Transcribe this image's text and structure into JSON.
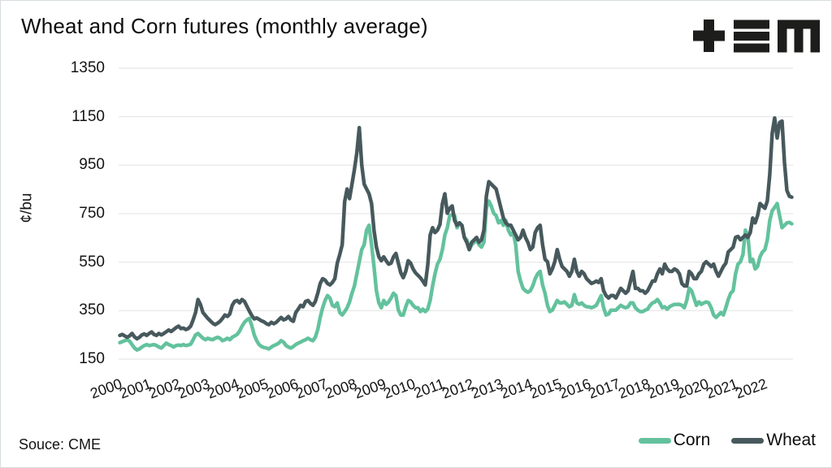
{
  "header": {
    "title": "Wheat and Corn futures (monthly average)"
  },
  "logo": {
    "glyphs": [
      "plus",
      "triple-bar",
      "letter-m"
    ],
    "color": "#1d1d1b"
  },
  "source": {
    "label": "Souce: CME"
  },
  "chart_data": {
    "type": "line",
    "title": "Wheat and Corn futures (monthly average)",
    "xlabel": "",
    "ylabel": "¢/bu",
    "ylim": [
      150,
      1350
    ],
    "yticks": [
      150,
      350,
      550,
      750,
      950,
      1150,
      1350
    ],
    "xticks": [
      2000,
      2001,
      2002,
      2003,
      2004,
      2005,
      2006,
      2007,
      2008,
      2009,
      2010,
      2011,
      2012,
      2013,
      2014,
      2015,
      2016,
      2017,
      2018,
      2019,
      2020,
      2021,
      2022
    ],
    "x_frequency": "monthly",
    "grid": "horizontal",
    "legend_position": "bottom-right",
    "series": [
      {
        "name": "Corn",
        "color": "#63c29d",
        "values": [
          218,
          222,
          226,
          230,
          224,
          210,
          196,
          188,
          192,
          200,
          206,
          210,
          206,
          208,
          210,
          206,
          200,
          196,
          206,
          216,
          210,
          206,
          200,
          206,
          208,
          206,
          210,
          206,
          208,
          212,
          230,
          250,
          256,
          246,
          236,
          230,
          236,
          232,
          230,
          236,
          240,
          236,
          226,
          230,
          236,
          230,
          240,
          246,
          252,
          266,
          286,
          302,
          312,
          318,
          288,
          250,
          226,
          210,
          202,
          198,
          196,
          192,
          200,
          206,
          210,
          216,
          226,
          220,
          206,
          200,
          196,
          202,
          210,
          216,
          220,
          226,
          230,
          236,
          230,
          226,
          240,
          272,
          322,
          362,
          392,
          412,
          402,
          372,
          366,
          382,
          342,
          332,
          346,
          362,
          386,
          422,
          452,
          502,
          552,
          602,
          622,
          682,
          702,
          622,
          532,
          432,
          382,
          362,
          392,
          376,
          386,
          402,
          422,
          412,
          352,
          332,
          332,
          366,
          392,
          386,
          372,
          362,
          362,
          346,
          356,
          346,
          356,
          392,
          452,
          502,
          542,
          562,
          602,
          662,
          692,
          742,
          746,
          742,
          692,
          712,
          702,
          652,
          642,
          602,
          622,
          632,
          642,
          622,
          612,
          632,
          772,
          802,
          782,
          752,
          742,
          712,
          722,
          702,
          722,
          682,
          662,
          672,
          622,
          512,
          472,
          442,
          432,
          426,
          432,
          452,
          482,
          502,
          512,
          456,
          422,
          372,
          346,
          352,
          372,
          392,
          382,
          382,
          386,
          376,
          366,
          372,
          416,
          382,
          376,
          382,
          372,
          366,
          366,
          362,
          366,
          372,
          392,
          412,
          362,
          332,
          336,
          352,
          352,
          352,
          362,
          372,
          366,
          362,
          366,
          382,
          382,
          362,
          352,
          346,
          346,
          352,
          356,
          372,
          382,
          386,
          396,
          382,
          362,
          366,
          356,
          366,
          372,
          376,
          376,
          376,
          372,
          362,
          392,
          442,
          432,
          402,
          372,
          386,
          376,
          382,
          386,
          382,
          362,
          332,
          322,
          332,
          342,
          332,
          362,
          396,
          422,
          432,
          502,
          542,
          552,
          582,
          682,
          662,
          552,
          562,
          522,
          532,
          572,
          592,
          602,
          642,
          722,
          762,
          776,
          792,
          742,
          692,
          702,
          712,
          714,
          708
        ]
      },
      {
        "name": "Wheat",
        "color": "#47595d",
        "values": [
          248,
          252,
          246,
          240,
          246,
          256,
          242,
          234,
          240,
          250,
          254,
          248,
          256,
          262,
          252,
          248,
          256,
          250,
          256,
          263,
          270,
          264,
          272,
          280,
          286,
          276,
          278,
          272,
          276,
          286,
          312,
          342,
          396,
          376,
          342,
          330,
          318,
          308,
          298,
          292,
          298,
          306,
          318,
          332,
          326,
          336,
          372,
          388,
          392,
          382,
          396,
          388,
          368,
          348,
          330,
          316,
          320,
          314,
          308,
          304,
          296,
          292,
          302,
          296,
          302,
          312,
          322,
          312,
          316,
          326,
          312,
          306,
          342,
          356,
          372,
          366,
          388,
          392,
          380,
          372,
          388,
          422,
          462,
          482,
          476,
          462,
          456,
          466,
          482,
          546,
          582,
          622,
          800,
          852,
          812,
          872,
          932,
          1002,
          1105,
          952,
          872,
          852,
          832,
          792,
          682,
          612,
          572,
          556,
          572,
          556,
          542,
          546,
          572,
          586,
          546,
          506,
          486,
          512,
          556,
          546,
          522,
          506,
          496,
          486,
          472,
          456,
          536,
          662,
          692,
          672,
          682,
          706,
          792,
          832,
          752,
          772,
          782,
          722,
          702,
          712,
          702,
          652,
          632,
          602,
          632,
          642,
          652,
          632,
          642,
          682,
          822,
          882,
          872,
          862,
          852,
          812,
          772,
          732,
          712,
          702,
          702,
          682,
          662,
          642,
          652,
          682,
          652,
          632,
          602,
          612,
          672,
          692,
          702,
          622,
          562,
          552,
          502,
          522,
          552,
          602,
          562,
          532,
          522,
          512,
          492,
          512,
          562,
          512,
          492,
          512,
          502,
          482,
          472,
          462,
          466,
          472,
          466,
          482,
          432,
          412,
          402,
          412,
          412,
          402,
          422,
          442,
          432,
          422,
          432,
          472,
          512,
          442,
          442,
          432,
          432,
          422,
          432,
          452,
          472,
          472,
          502,
          522,
          502,
          542,
          522,
          512,
          512,
          522,
          516,
          502,
          462,
          452,
          452,
          512,
          502,
          482,
          482,
          502,
          512,
          542,
          552,
          542,
          532,
          542,
          512,
          492,
          512,
          532,
          546,
          592,
          602,
          612,
          652,
          656,
          642,
          652,
          662,
          652,
          672,
          732,
          712,
          742,
          792,
          782,
          772,
          802,
          912,
          1082,
          1145,
          1062,
          1126,
          1132,
          962,
          846,
          822,
          818
        ]
      }
    ]
  }
}
